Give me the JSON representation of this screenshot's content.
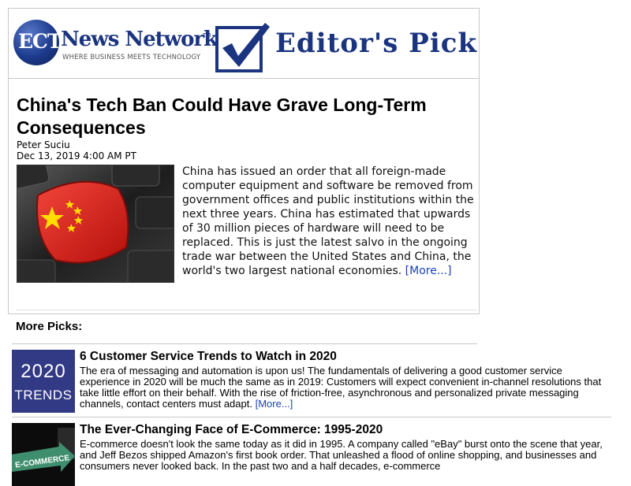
{
  "logo": {
    "letters": "ECT",
    "name": "News Network",
    "trademark": "TM",
    "tagline": "WHERE BUSINESS MEETS TECHNOLOGY",
    "badge": "Editor's Pick",
    "colors": {
      "brand": "#1b3480"
    }
  },
  "feature": {
    "title": "China's Tech Ban Could Have Grave Long-Term Consequences",
    "author": "Peter Suciu",
    "date": "Dec 13, 2019 4:00 AM PT",
    "image": "china-flag-keyboard-key-image",
    "summary": "China has issued an order that all foreign-made computer equipment and software be removed from government offices and public institutions within the next three years. China has estimated that upwards of 30 million pieces of hardware will need to be replaced. This is just the latest salvo in the ongoing trade war between the United States and China, the world's two largest national economies.",
    "more_label": "[More...]"
  },
  "more_picks": {
    "heading": "More Picks:",
    "items": [
      {
        "title": "6 Customer Service Trends to Watch in 2020",
        "thumb_line1": "2020",
        "thumb_line2": "TRENDS",
        "text": "The era of messaging and automation is upon us! The fundamentals of delivering a good customer service experience in 2020 will be much the same as in 2019: Customers will expect convenient in-channel resolutions that take little effort on their behalf. With the rise of friction-free, asynchronous and personalized private messaging channels, contact centers must adapt.",
        "more_label": "[More...]"
      },
      {
        "title": "The Ever-Changing Face of E-Commerce: 1995-2020",
        "thumb_label": "E-COMMERCE",
        "text": "E-commerce doesn't look the same today as it did in 1995. A company called \"eBay\" burst onto the scene that year, and Jeff Bezos shipped Amazon's first book order. That unleashed a flood of online shopping, and businesses and consumers never looked back. In the past two and a half decades, e-commerce"
      }
    ]
  },
  "colors": {
    "link": "#1b3fb8",
    "thumb_bg": "#323a86"
  }
}
